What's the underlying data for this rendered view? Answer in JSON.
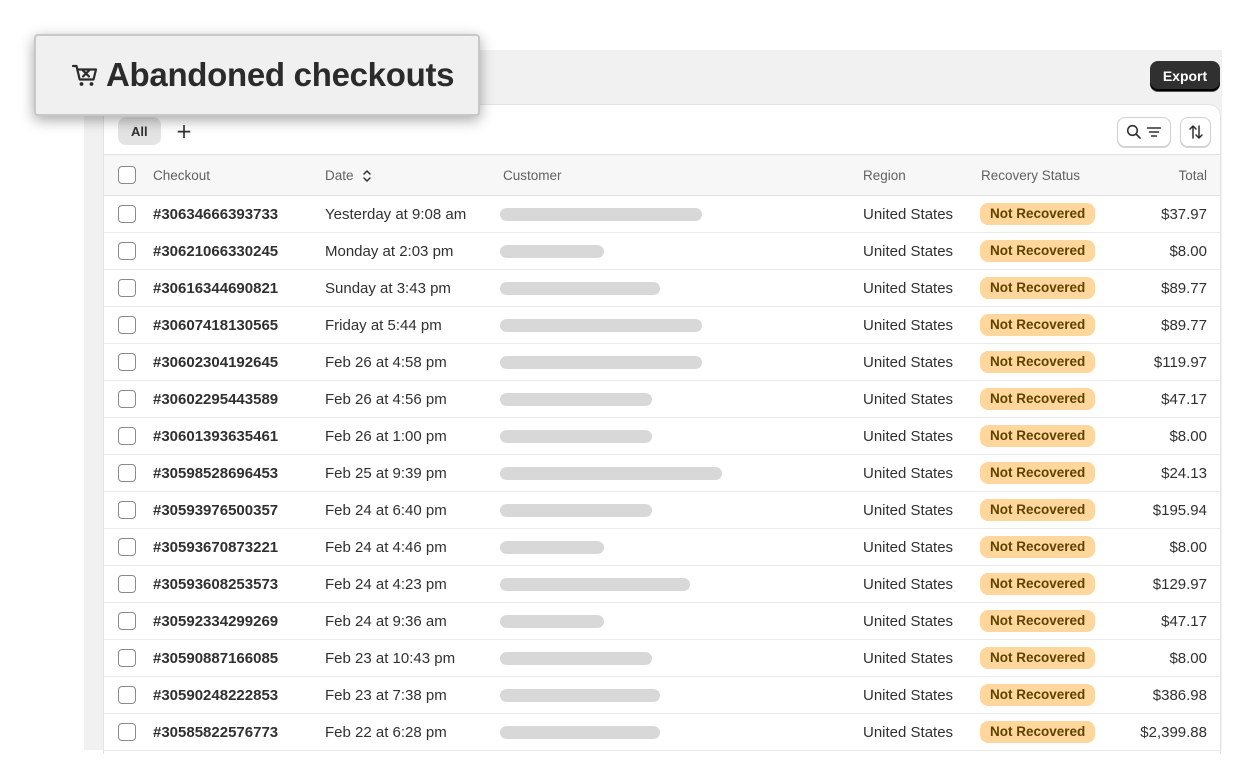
{
  "page": {
    "title": "Abandoned checkouts",
    "export_label": "Export"
  },
  "tabs": [
    {
      "label": "All",
      "active": true
    }
  ],
  "add_view_label": "+",
  "table": {
    "columns": [
      "Checkout",
      "Date",
      "Customer",
      "Region",
      "Recovery Status",
      "Total"
    ],
    "rows": [
      {
        "checkout": "#30634666393733",
        "date": "Yesterday at 9:08 am",
        "region": "United States",
        "status": "Not Recovered",
        "total": "$37.97"
      },
      {
        "checkout": "#30621066330245",
        "date": "Monday at 2:03 pm",
        "region": "United States",
        "status": "Not Recovered",
        "total": "$8.00"
      },
      {
        "checkout": "#30616344690821",
        "date": "Sunday at 3:43 pm",
        "region": "United States",
        "status": "Not Recovered",
        "total": "$89.77"
      },
      {
        "checkout": "#30607418130565",
        "date": "Friday at 5:44 pm",
        "region": "United States",
        "status": "Not Recovered",
        "total": "$89.77"
      },
      {
        "checkout": "#30602304192645",
        "date": "Feb 26 at 4:58 pm",
        "region": "United States",
        "status": "Not Recovered",
        "total": "$119.97"
      },
      {
        "checkout": "#30602295443589",
        "date": "Feb 26 at 4:56 pm",
        "region": "United States",
        "status": "Not Recovered",
        "total": "$47.17"
      },
      {
        "checkout": "#30601393635461",
        "date": "Feb 26 at 1:00 pm",
        "region": "United States",
        "status": "Not Recovered",
        "total": "$8.00"
      },
      {
        "checkout": "#30598528696453",
        "date": "Feb 25 at 9:39 pm",
        "region": "United States",
        "status": "Not Recovered",
        "total": "$24.13"
      },
      {
        "checkout": "#30593976500357",
        "date": "Feb 24 at 6:40 pm",
        "region": "United States",
        "status": "Not Recovered",
        "total": "$195.94"
      },
      {
        "checkout": "#30593670873221",
        "date": "Feb 24 at 4:46 pm",
        "region": "United States",
        "status": "Not Recovered",
        "total": "$8.00"
      },
      {
        "checkout": "#30593608253573",
        "date": "Feb 24 at 4:23 pm",
        "region": "United States",
        "status": "Not Recovered",
        "total": "$129.97"
      },
      {
        "checkout": "#30592334299269",
        "date": "Feb 24 at 9:36 am",
        "region": "United States",
        "status": "Not Recovered",
        "total": "$47.17"
      },
      {
        "checkout": "#30590887166085",
        "date": "Feb 23 at 10:43 pm",
        "region": "United States",
        "status": "Not Recovered",
        "total": "$8.00"
      },
      {
        "checkout": "#30590248222853",
        "date": "Feb 23 at 7:38 pm",
        "region": "United States",
        "status": "Not Recovered",
        "total": "$386.98"
      },
      {
        "checkout": "#30585822576773",
        "date": "Feb 22 at 6:28 pm",
        "region": "United States",
        "status": "Not Recovered",
        "total": "$2,399.88"
      }
    ]
  },
  "icons": {
    "title": "abandoned-cart-icon",
    "search_filter": "search-filter-icon",
    "sort": "sort-icon",
    "date_sort": "sort-chevrons-icon"
  },
  "colors": {
    "badge_bg": "#ffd79d",
    "badge_text": "#5e4200",
    "export_bg": "#303030"
  }
}
